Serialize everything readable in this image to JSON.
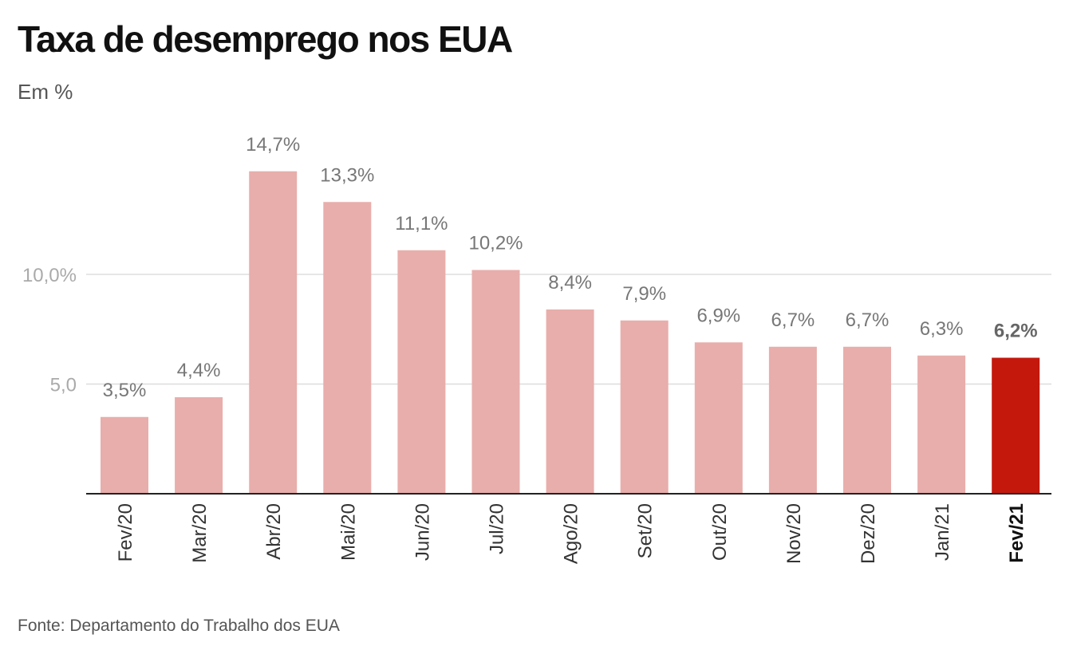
{
  "title": "Taxa de desemprego nos EUA",
  "subtitle": "Em %",
  "source": "Fonte: Departamento do Trabalho dos EUA",
  "chart_data": {
    "type": "bar",
    "categories": [
      "Fev/20",
      "Mar/20",
      "Abr/20",
      "Mai/20",
      "Jun/20",
      "Jul/20",
      "Ago/20",
      "Set/20",
      "Out/20",
      "Nov/20",
      "Dez/20",
      "Jan/21",
      "Fev/21"
    ],
    "values": [
      3.5,
      4.4,
      14.7,
      13.3,
      11.1,
      10.2,
      8.4,
      7.9,
      6.9,
      6.7,
      6.7,
      6.3,
      6.2
    ],
    "value_labels": [
      "3,5%",
      "4,4%",
      "14,7%",
      "13,3%",
      "11,1%",
      "10,2%",
      "8,4%",
      "7,9%",
      "6,9%",
      "6,7%",
      "6,7%",
      "6,3%",
      "6,2%"
    ],
    "highlight_index": 12,
    "y_ticks": [
      {
        "value": 5,
        "label": "5,0"
      },
      {
        "value": 10,
        "label": "10,0%"
      }
    ],
    "ylim": [
      0,
      15
    ],
    "grid": true,
    "colors": {
      "bar": "#e8aeab",
      "highlight_bar": "#c4180c",
      "gridline": "#dddddd",
      "axis": "#222222"
    }
  }
}
